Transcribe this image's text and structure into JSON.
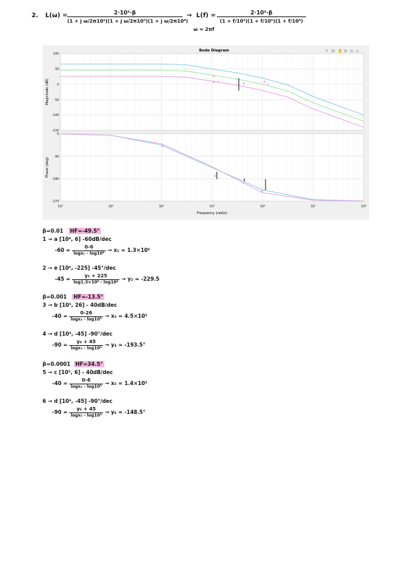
{
  "header": {
    "number": "2.",
    "lhs1": "L(ω) =",
    "num1": "2·10⁵·β",
    "den1": "(1 + j ω/2π10⁴)(1 + j ω/2π10⁵)(1 + j ω/2π10⁶)",
    "arrow": "→",
    "lhs2": "L(f) =",
    "num2": "2·10⁵·β",
    "den2_prefix": "ω = 2πf",
    "den2": "(1 + f/10⁴)(1 + f/10⁵)(1 + f/10⁶)"
  },
  "plot": {
    "title": "Bode Diagram",
    "xlabel": "Frequency (rad/s)",
    "mag_ylabel": "Magnitude (dB)",
    "phase_ylabel": "Phase (deg)",
    "x_ticks": [
      "10²",
      "10³",
      "10⁴",
      "10⁵",
      "10⁶",
      "10⁷",
      "10⁸"
    ],
    "mag_ticks": [
      "100",
      "50",
      "0",
      "-50",
      "-100",
      "-150"
    ],
    "phase_ticks": [
      "0",
      "-90",
      "-180",
      "-270"
    ],
    "toolbar_icons": [
      "brush-icon",
      "data-tip-icon",
      "pan-icon",
      "zoom-in-icon",
      "zoom-out-icon",
      "home-icon"
    ],
    "colors": {
      "blue": "#7ac9e4",
      "green": "#9be39b",
      "pink": "#e39be0",
      "grid": "#d9d9d9",
      "bg": "#f0f0f0"
    },
    "annotations": {
      "mag_a": "a",
      "mag_b": "b",
      "mag_c": "c",
      "mag_a2": "a",
      "mag_d": "d",
      "mag_c2": "c",
      "ph_a": "a",
      "ph_b": "b",
      "ph_c": "c",
      "ph_d": "d"
    }
  },
  "chart_data": {
    "type": "line",
    "title": "Bode Diagram",
    "xlabel": "Frequency (rad/s)",
    "x_scale": "log",
    "xlim": [
      100,
      100000000
    ],
    "panels": [
      {
        "name": "Magnitude",
        "ylabel": "Magnitude (dB)",
        "ylim": [
          -150,
          100
        ],
        "series": [
          {
            "color": "#7ac9e4",
            "x": [
              100,
              10000,
              31416,
              100000,
              314159,
              1000000,
              3141593,
              10000000,
              100000000
            ],
            "y": [
              66,
              66,
              63,
              50,
              37,
              20,
              -2,
              -40,
              -100
            ]
          },
          {
            "color": "#9be39b",
            "x": [
              100,
              10000,
              31416,
              100000,
              314159,
              1000000,
              3141593,
              10000000,
              100000000
            ],
            "y": [
              46,
              46,
              43,
              30,
              17,
              0,
              -22,
              -60,
              -120
            ]
          },
          {
            "color": "#e39be0",
            "x": [
              100,
              10000,
              31416,
              100000,
              314159,
              1000000,
              3141593,
              10000000,
              100000000
            ],
            "y": [
              26,
              26,
              23,
              10,
              -3,
              -20,
              -42,
              -80,
              -140
            ]
          }
        ]
      },
      {
        "name": "Phase",
        "ylabel": "Phase (deg)",
        "ylim": [
          -270,
          0
        ],
        "series": [
          {
            "color": "#7ac9e4",
            "x": [
              100,
              1000,
              10000,
              100000,
              1000000,
              10000000,
              100000000
            ],
            "y": [
              0,
              -6,
              -45,
              -135,
              -225,
              -264,
              -270
            ]
          },
          {
            "color": "#e39be0",
            "x": [
              100,
              1000,
              10000,
              100000,
              1000000,
              10000000,
              100000000
            ],
            "y": [
              0,
              -6,
              -40,
              -132,
              -236,
              -266,
              -270
            ]
          }
        ]
      }
    ]
  },
  "notes": {
    "b1": {
      "beta": "β=0.01",
      "hf": "HF=-49.5°"
    },
    "l1": "1 → a [10⁶, 6] -60dB/dec",
    "l1eq_l": "-60 =",
    "l1eq_num": "0-6",
    "l1eq_den": "logx₁ - log10⁶",
    "l1eq_r": "→ x₁ = 1.3×10⁶",
    "l2": "2 → e [10⁶, -225] -45°/dec",
    "l2eq_l": "-45 =",
    "l2eq_num": "y₂ + 225",
    "l2eq_den": "log1.3×10⁶ - log10⁶",
    "l2eq_r": "→ y₂ = -229.5",
    "b2": {
      "beta": "β=0.001",
      "hf": "HF=-13.5°"
    },
    "l3": "3 → b [10⁵, 26] - 40dB/dec",
    "l3eq_l": "-40 =",
    "l3eq_num": "0-26",
    "l3eq_den": "logx₃ - log10⁵",
    "l3eq_r": "→ x₃ = 4.5×10⁵",
    "l4": "4 → d [10⁴, -45] -90°/dec",
    "l4eq_l": "-90 =",
    "l4eq_num": "y₄ + 45",
    "l4eq_den": "logx₃ - log10⁴",
    "l4eq_r": "→ y₄ = -193.5°",
    "b3": {
      "beta": "β=0.0001",
      "HF_label": "HF=34.5°"
    },
    "l5": "5 → c [10⁵, 6] - 40dB/dec",
    "l5eq_l": "-40 =",
    "l5eq_num": "0-6",
    "l5eq_den": "logx₅ - log10⁵",
    "l5eq_r": "→ x₅ = 1.4×10⁵",
    "l6": "6 → d [10⁴, -45] -90°/dec",
    "l6eq_l": "-90 =",
    "l6eq_num": "y₆ + 45",
    "l6eq_den": "logx₅ - log10⁴",
    "l6eq_r": "→ y₆ = -148.5°"
  }
}
